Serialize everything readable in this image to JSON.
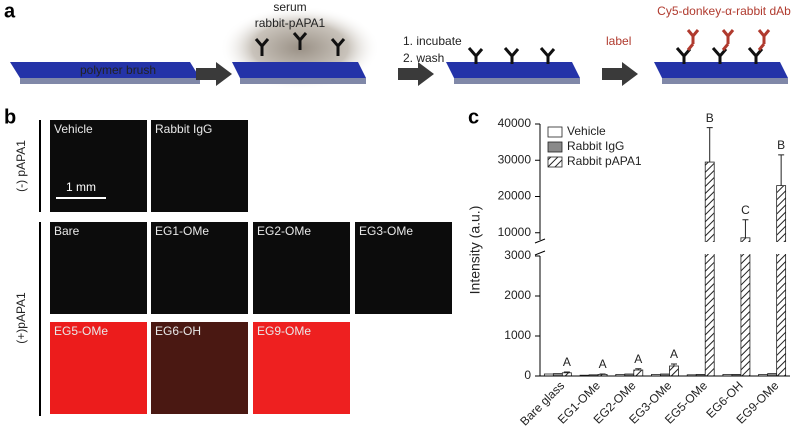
{
  "panel_a": {
    "label": "a",
    "brush": "polymer brush",
    "serum": "serum",
    "antibody": "rabbit-pAPA1",
    "step1": "1. incubate",
    "step2": "2. wash",
    "label_step": "label",
    "secondary": "Cy5-donkey-α-rabbit dAb"
  },
  "panel_b": {
    "label": "b",
    "scale_bar": "1 mm",
    "rows": [
      {
        "label": "(-) pAPA1",
        "tiles": [
          [
            {
              "label": "Vehicle",
              "color": "#0c0c0c"
            },
            {
              "label": "Rabbit IgG",
              "color": "#0c0c0c"
            }
          ]
        ]
      },
      {
        "label": "(+)pAPA1",
        "tiles": [
          [
            {
              "label": "Bare",
              "color": "#0c0c0c"
            },
            {
              "label": "EG1-OMe",
              "color": "#0c0c0c"
            },
            {
              "label": "EG2-OMe",
              "color": "#0c0c0c"
            },
            {
              "label": "EG3-OMe",
              "color": "#0c0c0c"
            }
          ],
          [
            {
              "label": "EG5-OMe",
              "color": "#ec1c1c"
            },
            {
              "label": "EG6-OH",
              "color": "#4a1812"
            },
            {
              "label": "EG9-OMe",
              "color": "#ee2020"
            }
          ]
        ]
      }
    ]
  },
  "chart_data": {
    "type": "bar",
    "panel_label": "c",
    "y_label": "Intensity (a.u.)",
    "categories": [
      "Bare glass",
      "EG1-OMe",
      "EG2-OMe",
      "EG3-OMe",
      "EG5-OMe",
      "EG6-OH",
      "EG9-OMe"
    ],
    "series": [
      {
        "name": "Vehicle",
        "color": "#ffffff",
        "values": [
          50,
          20,
          40,
          40,
          30,
          40,
          40
        ]
      },
      {
        "name": "Rabbit IgG",
        "color": "#8a8a8a",
        "values": [
          60,
          30,
          50,
          50,
          40,
          40,
          60
        ]
      },
      {
        "name": "Rabbit pAPA1",
        "color": "hatch",
        "values": [
          80,
          40,
          150,
          250,
          29500,
          8600,
          23000
        ],
        "errors": [
          20,
          10,
          30,
          50,
          9500,
          5000,
          8500
        ]
      }
    ],
    "annotations": [
      "A",
      "A",
      "A",
      "A",
      "B",
      "C",
      "B"
    ],
    "ylim": [
      0,
      40000
    ],
    "axis_break": [
      3000,
      8000
    ],
    "yticks": [
      0,
      1000,
      2000,
      3000,
      10000,
      20000,
      30000,
      40000
    ],
    "legend": "upper-left"
  }
}
